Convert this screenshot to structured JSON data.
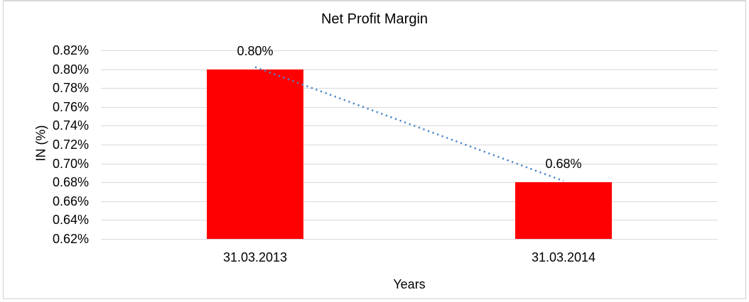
{
  "chart_data": {
    "type": "bar",
    "title": "Net Profit Margin",
    "xlabel": "Years",
    "ylabel": "IN (%)",
    "categories": [
      "31.03.2013",
      "31.03.2014"
    ],
    "values": [
      0.8,
      0.68
    ],
    "data_labels": [
      "0.80%",
      "0.68%"
    ],
    "ylim": [
      0.62,
      0.82
    ],
    "ytick_step": 0.02,
    "ytick_labels": [
      "0.82%",
      "0.80%",
      "0.78%",
      "0.76%",
      "0.74%",
      "0.72%",
      "0.70%",
      "0.68%",
      "0.66%",
      "0.64%",
      "0.62%"
    ],
    "grid": true,
    "legend": "none",
    "bar_color": "#ff0000",
    "gridline_color": "#d9d9d9",
    "trendline": {
      "type": "linear",
      "style": "dotted",
      "color": "#4b87c8"
    }
  }
}
